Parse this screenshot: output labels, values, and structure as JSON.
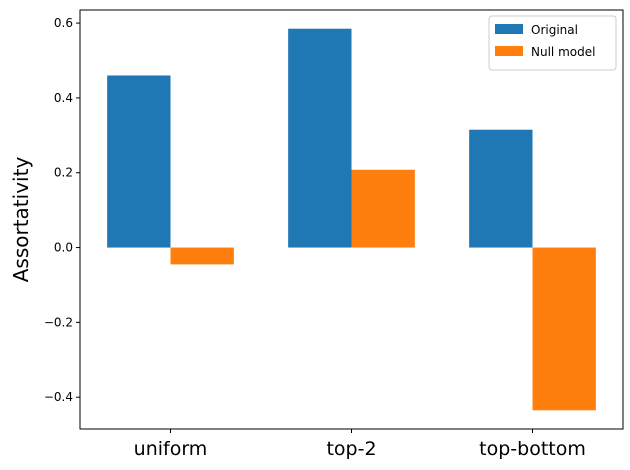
{
  "chart_data": {
    "type": "bar",
    "title": "",
    "xlabel": "",
    "ylabel": "Assortativity",
    "categories": [
      "uniform",
      "top-2",
      "top-bottom"
    ],
    "series": [
      {
        "name": "Original",
        "color": "#1f77b4",
        "values": [
          0.46,
          0.585,
          0.315
        ]
      },
      {
        "name": "Null model",
        "color": "#ff7f0e",
        "values": [
          -0.045,
          0.208,
          -0.435
        ]
      }
    ],
    "ylim": [
      -0.485,
      0.635
    ],
    "yticks": [
      -0.4,
      -0.2,
      0.0,
      0.2,
      0.4,
      0.6
    ],
    "ytick_labels": [
      "−0.4",
      "−0.2",
      "0.0",
      "0.2",
      "0.4",
      "0.6"
    ],
    "grid": false,
    "legend_position": "top-right"
  }
}
